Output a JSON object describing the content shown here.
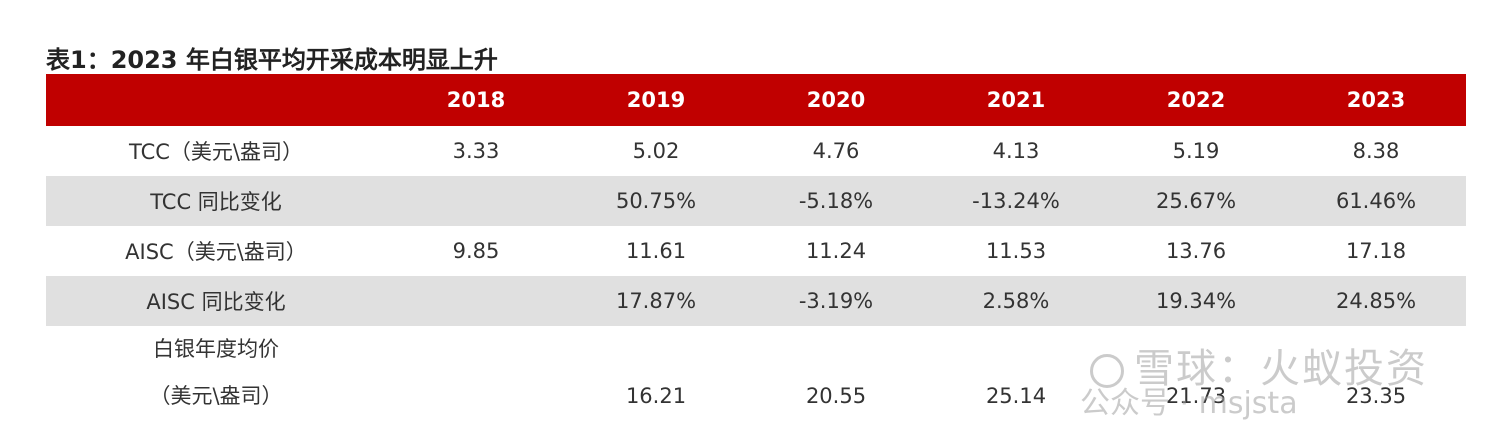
{
  "title": "表1：2023 年白银平均开采成本明显上升",
  "table": {
    "headers": [
      "",
      "2018",
      "2019",
      "2020",
      "2021",
      "2022",
      "2023"
    ],
    "rows": [
      {
        "label": "TCC（美元\\盎司）",
        "values": [
          "3.33",
          "5.02",
          "4.76",
          "4.13",
          "5.19",
          "8.38"
        ]
      },
      {
        "label": "TCC 同比变化",
        "values": [
          "",
          "50.75%",
          "-5.18%",
          "-13.24%",
          "25.67%",
          "61.46%"
        ]
      },
      {
        "label": "AISC（美元\\盎司）",
        "values": [
          "9.85",
          "11.61",
          "11.24",
          "11.53",
          "13.76",
          "17.18"
        ]
      },
      {
        "label": "AISC 同比变化",
        "values": [
          "",
          "17.87%",
          "-3.19%",
          "2.58%",
          "19.34%",
          "24.85%"
        ]
      },
      {
        "label_line1": "白银年度均价",
        "label_line2": "（美元\\盎司）",
        "values": [
          "",
          "16.21",
          "20.55",
          "25.14",
          "21.73",
          "23.35"
        ]
      }
    ]
  },
  "watermark": {
    "line1": "雪球：火蚁投资",
    "line2": "公众号 · msjsta"
  },
  "colors": {
    "header_bg": "#c00000",
    "alt_row_bg": "#e0e0e0"
  }
}
